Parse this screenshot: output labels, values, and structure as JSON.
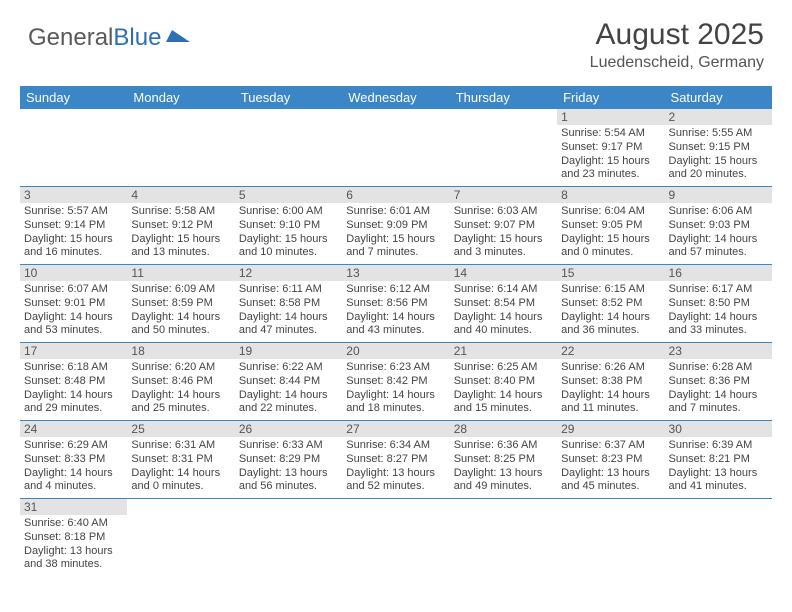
{
  "logo": {
    "text_a": "General",
    "text_b": "Blue"
  },
  "title": "August 2025",
  "location": "Luedenscheid, Germany",
  "colors": {
    "header_bg": "#3b86c7",
    "header_text": "#ffffff",
    "daynum_bg": "#e3e3e3",
    "row_border": "#3b86c7",
    "logo_gray": "#5a5a5a",
    "logo_blue": "#2d6fb5"
  },
  "weekdays": [
    "Sunday",
    "Monday",
    "Tuesday",
    "Wednesday",
    "Thursday",
    "Friday",
    "Saturday"
  ],
  "weeks": [
    [
      null,
      null,
      null,
      null,
      null,
      {
        "n": "1",
        "sr": "Sunrise: 5:54 AM",
        "ss": "Sunset: 9:17 PM",
        "dl": "Daylight: 15 hours and 23 minutes."
      },
      {
        "n": "2",
        "sr": "Sunrise: 5:55 AM",
        "ss": "Sunset: 9:15 PM",
        "dl": "Daylight: 15 hours and 20 minutes."
      }
    ],
    [
      {
        "n": "3",
        "sr": "Sunrise: 5:57 AM",
        "ss": "Sunset: 9:14 PM",
        "dl": "Daylight: 15 hours and 16 minutes."
      },
      {
        "n": "4",
        "sr": "Sunrise: 5:58 AM",
        "ss": "Sunset: 9:12 PM",
        "dl": "Daylight: 15 hours and 13 minutes."
      },
      {
        "n": "5",
        "sr": "Sunrise: 6:00 AM",
        "ss": "Sunset: 9:10 PM",
        "dl": "Daylight: 15 hours and 10 minutes."
      },
      {
        "n": "6",
        "sr": "Sunrise: 6:01 AM",
        "ss": "Sunset: 9:09 PM",
        "dl": "Daylight: 15 hours and 7 minutes."
      },
      {
        "n": "7",
        "sr": "Sunrise: 6:03 AM",
        "ss": "Sunset: 9:07 PM",
        "dl": "Daylight: 15 hours and 3 minutes."
      },
      {
        "n": "8",
        "sr": "Sunrise: 6:04 AM",
        "ss": "Sunset: 9:05 PM",
        "dl": "Daylight: 15 hours and 0 minutes."
      },
      {
        "n": "9",
        "sr": "Sunrise: 6:06 AM",
        "ss": "Sunset: 9:03 PM",
        "dl": "Daylight: 14 hours and 57 minutes."
      }
    ],
    [
      {
        "n": "10",
        "sr": "Sunrise: 6:07 AM",
        "ss": "Sunset: 9:01 PM",
        "dl": "Daylight: 14 hours and 53 minutes."
      },
      {
        "n": "11",
        "sr": "Sunrise: 6:09 AM",
        "ss": "Sunset: 8:59 PM",
        "dl": "Daylight: 14 hours and 50 minutes."
      },
      {
        "n": "12",
        "sr": "Sunrise: 6:11 AM",
        "ss": "Sunset: 8:58 PM",
        "dl": "Daylight: 14 hours and 47 minutes."
      },
      {
        "n": "13",
        "sr": "Sunrise: 6:12 AM",
        "ss": "Sunset: 8:56 PM",
        "dl": "Daylight: 14 hours and 43 minutes."
      },
      {
        "n": "14",
        "sr": "Sunrise: 6:14 AM",
        "ss": "Sunset: 8:54 PM",
        "dl": "Daylight: 14 hours and 40 minutes."
      },
      {
        "n": "15",
        "sr": "Sunrise: 6:15 AM",
        "ss": "Sunset: 8:52 PM",
        "dl": "Daylight: 14 hours and 36 minutes."
      },
      {
        "n": "16",
        "sr": "Sunrise: 6:17 AM",
        "ss": "Sunset: 8:50 PM",
        "dl": "Daylight: 14 hours and 33 minutes."
      }
    ],
    [
      {
        "n": "17",
        "sr": "Sunrise: 6:18 AM",
        "ss": "Sunset: 8:48 PM",
        "dl": "Daylight: 14 hours and 29 minutes."
      },
      {
        "n": "18",
        "sr": "Sunrise: 6:20 AM",
        "ss": "Sunset: 8:46 PM",
        "dl": "Daylight: 14 hours and 25 minutes."
      },
      {
        "n": "19",
        "sr": "Sunrise: 6:22 AM",
        "ss": "Sunset: 8:44 PM",
        "dl": "Daylight: 14 hours and 22 minutes."
      },
      {
        "n": "20",
        "sr": "Sunrise: 6:23 AM",
        "ss": "Sunset: 8:42 PM",
        "dl": "Daylight: 14 hours and 18 minutes."
      },
      {
        "n": "21",
        "sr": "Sunrise: 6:25 AM",
        "ss": "Sunset: 8:40 PM",
        "dl": "Daylight: 14 hours and 15 minutes."
      },
      {
        "n": "22",
        "sr": "Sunrise: 6:26 AM",
        "ss": "Sunset: 8:38 PM",
        "dl": "Daylight: 14 hours and 11 minutes."
      },
      {
        "n": "23",
        "sr": "Sunrise: 6:28 AM",
        "ss": "Sunset: 8:36 PM",
        "dl": "Daylight: 14 hours and 7 minutes."
      }
    ],
    [
      {
        "n": "24",
        "sr": "Sunrise: 6:29 AM",
        "ss": "Sunset: 8:33 PM",
        "dl": "Daylight: 14 hours and 4 minutes."
      },
      {
        "n": "25",
        "sr": "Sunrise: 6:31 AM",
        "ss": "Sunset: 8:31 PM",
        "dl": "Daylight: 14 hours and 0 minutes."
      },
      {
        "n": "26",
        "sr": "Sunrise: 6:33 AM",
        "ss": "Sunset: 8:29 PM",
        "dl": "Daylight: 13 hours and 56 minutes."
      },
      {
        "n": "27",
        "sr": "Sunrise: 6:34 AM",
        "ss": "Sunset: 8:27 PM",
        "dl": "Daylight: 13 hours and 52 minutes."
      },
      {
        "n": "28",
        "sr": "Sunrise: 6:36 AM",
        "ss": "Sunset: 8:25 PM",
        "dl": "Daylight: 13 hours and 49 minutes."
      },
      {
        "n": "29",
        "sr": "Sunrise: 6:37 AM",
        "ss": "Sunset: 8:23 PM",
        "dl": "Daylight: 13 hours and 45 minutes."
      },
      {
        "n": "30",
        "sr": "Sunrise: 6:39 AM",
        "ss": "Sunset: 8:21 PM",
        "dl": "Daylight: 13 hours and 41 minutes."
      }
    ],
    [
      {
        "n": "31",
        "sr": "Sunrise: 6:40 AM",
        "ss": "Sunset: 8:18 PM",
        "dl": "Daylight: 13 hours and 38 minutes."
      },
      null,
      null,
      null,
      null,
      null,
      null
    ]
  ]
}
